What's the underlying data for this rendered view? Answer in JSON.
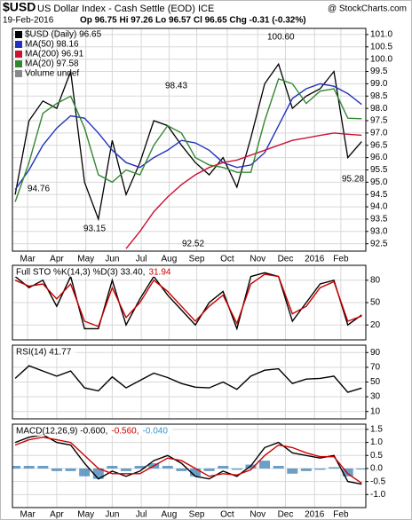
{
  "header": {
    "symbol": "$USD",
    "name": "US Dollar Index - Cash Settle (EOD) ICE",
    "source": "@ StockCharts.com",
    "date": "19-Feb-2016",
    "quote": "Op 96.75 Hi 97.26 Lo 96.57 Cl 96.65 Chg -0.31 (-0.32%)"
  },
  "chart_data": [
    {
      "type": "line",
      "x": [
        0,
        10,
        20,
        30,
        40,
        50,
        60,
        70,
        80,
        90,
        100,
        110,
        120,
        130,
        140,
        150,
        160,
        170,
        180,
        190,
        200,
        210,
        220,
        230,
        240,
        250
      ],
      "xlim": [
        -2,
        253
      ],
      "xticks": [
        {
          "value": 9,
          "label": "Mar"
        },
        {
          "value": 30,
          "label": "Apr"
        },
        {
          "value": 51,
          "label": "May"
        },
        {
          "value": 70,
          "label": "Jun"
        },
        {
          "value": 91,
          "label": "Jul"
        },
        {
          "value": 111,
          "label": "Aug"
        },
        {
          "value": 131,
          "label": "Sep"
        },
        {
          "value": 153,
          "label": "Oct"
        },
        {
          "value": 175,
          "label": "Nov"
        },
        {
          "value": 195,
          "label": "Dec"
        },
        {
          "value": 216,
          "label": "2016"
        },
        {
          "value": 235,
          "label": "Feb"
        }
      ],
      "ylim": [
        92.2,
        101.25
      ],
      "yticks": [
        92.5,
        {
          "value": 93,
          "label": "93.0"
        },
        93.5,
        {
          "value": 94,
          "label": "94.0"
        },
        94.5,
        {
          "value": 95,
          "label": "95.0"
        },
        95.5,
        {
          "value": 96,
          "label": "96.0"
        },
        96.5,
        {
          "value": 97,
          "label": "97.0"
        },
        97.5,
        {
          "value": 98,
          "label": "98.0"
        },
        98.5,
        {
          "value": 99,
          "label": "99.0"
        },
        99.5,
        {
          "value": 100,
          "label": "100.0"
        },
        100.5,
        {
          "value": 101,
          "label": "101.0"
        }
      ],
      "grid": true,
      "series": [
        {
          "name": "$USD (Daily) 96.65",
          "color": "#000000",
          "values": [
            94.5,
            97.5,
            98.3,
            98.0,
            99.5,
            95.0,
            93.5,
            96.7,
            94.5,
            95.8,
            97.5,
            97.3,
            96.5,
            95.8,
            95.3,
            96.0,
            94.8,
            96.8,
            99.0,
            99.8,
            98.0,
            98.5,
            98.8,
            99.5,
            96.0,
            96.65
          ]
        },
        {
          "name": "MA(50) 98.16",
          "color": "#2233bb",
          "values": [
            94.7,
            95.5,
            96.5,
            97.2,
            97.7,
            97.6,
            97.0,
            96.3,
            95.8,
            95.6,
            96.0,
            96.3,
            96.7,
            96.6,
            96.3,
            95.8,
            95.6,
            95.7,
            96.2,
            97.3,
            98.4,
            98.8,
            99.0,
            98.9,
            98.6,
            98.16
          ]
        },
        {
          "name": "MA(200) 96.91",
          "color": "#cc1133",
          "values": [
            null,
            null,
            null,
            null,
            null,
            null,
            null,
            null,
            92.3,
            93.0,
            93.8,
            94.4,
            94.9,
            95.3,
            95.6,
            95.8,
            95.9,
            96.1,
            96.3,
            96.5,
            96.7,
            96.8,
            96.9,
            97.0,
            96.95,
            96.91
          ]
        },
        {
          "name": "MA(20) 97.58",
          "color": "#33882f",
          "values": [
            94.2,
            95.8,
            97.8,
            98.2,
            98.5,
            97.2,
            95.3,
            95.0,
            95.5,
            95.3,
            96.5,
            97.3,
            97.0,
            96.0,
            95.7,
            95.6,
            95.4,
            95.4,
            97.5,
            99.2,
            99.0,
            98.2,
            98.7,
            98.8,
            97.6,
            97.58
          ]
        }
      ],
      "legend_note": "Volume undef",
      "annotations": [
        "100.60",
        "98.43",
        "94.76",
        "93.15",
        "92.52",
        "95.28"
      ]
    },
    {
      "type": "line",
      "x": [
        0,
        10,
        20,
        30,
        40,
        50,
        60,
        70,
        80,
        90,
        100,
        110,
        120,
        130,
        140,
        150,
        160,
        170,
        180,
        190,
        200,
        210,
        220,
        230,
        240,
        250
      ],
      "xlim": [
        -2,
        253
      ],
      "ylim": [
        0,
        100
      ],
      "yticks": [
        20,
        50,
        80
      ],
      "grid": true,
      "legend": [
        {
          "text": "Full STO %K(14,3) %D(3) 33.40,",
          "color": "#000000"
        },
        {
          "text": "31.94",
          "color": "#cc0000"
        }
      ],
      "series": [
        {
          "color": "#000000",
          "values": [
            85,
            70,
            80,
            45,
            85,
            15,
            15,
            80,
            20,
            55,
            85,
            60,
            40,
            20,
            50,
            65,
            15,
            85,
            90,
            85,
            25,
            50,
            75,
            80,
            20,
            33.4
          ]
        },
        {
          "color": "#cc0000",
          "values": [
            80,
            72,
            75,
            55,
            75,
            25,
            18,
            70,
            30,
            50,
            80,
            65,
            45,
            25,
            45,
            60,
            22,
            75,
            88,
            85,
            35,
            45,
            70,
            78,
            25,
            31.94
          ]
        }
      ]
    },
    {
      "type": "line",
      "x": [
        0,
        10,
        20,
        30,
        40,
        50,
        60,
        70,
        80,
        90,
        100,
        110,
        120,
        130,
        140,
        150,
        160,
        170,
        180,
        190,
        200,
        210,
        220,
        230,
        240,
        250
      ],
      "xlim": [
        -2,
        253
      ],
      "ylim": [
        0,
        100
      ],
      "yticks": [
        10,
        30,
        50,
        70,
        90
      ],
      "grid": true,
      "legend": [
        {
          "text": "RSI(14) 41.77",
          "color": "#000000"
        }
      ],
      "series": [
        {
          "color": "#000000",
          "values": [
            55,
            72,
            65,
            58,
            65,
            42,
            38,
            57,
            42,
            52,
            62,
            56,
            48,
            43,
            42,
            50,
            40,
            58,
            66,
            68,
            48,
            54,
            55,
            58,
            36,
            41.77
          ]
        }
      ]
    },
    {
      "type": "line",
      "x": [
        0,
        10,
        20,
        30,
        40,
        50,
        60,
        70,
        80,
        90,
        100,
        110,
        120,
        130,
        140,
        150,
        160,
        170,
        180,
        190,
        200,
        210,
        220,
        230,
        240,
        250
      ],
      "xlim": [
        -2,
        253
      ],
      "xticks": [
        {
          "value": 9,
          "label": "Mar"
        },
        {
          "value": 30,
          "label": "Apr"
        },
        {
          "value": 51,
          "label": "May"
        },
        {
          "value": 70,
          "label": "Jun"
        },
        {
          "value": 91,
          "label": "Jul"
        },
        {
          "value": 111,
          "label": "Aug"
        },
        {
          "value": 131,
          "label": "Sep"
        },
        {
          "value": 153,
          "label": "Oct"
        },
        {
          "value": 175,
          "label": "Nov"
        },
        {
          "value": 195,
          "label": "Dec"
        },
        {
          "value": 216,
          "label": "2016"
        },
        {
          "value": 235,
          "label": "Feb"
        }
      ],
      "ylim": [
        -1.5,
        1.7
      ],
      "yticks": [
        1.5,
        {
          "value": 1,
          "label": "1.0"
        },
        0.5,
        {
          "value": 0,
          "label": "0.0"
        },
        -0.5,
        {
          "value": -1,
          "label": "-1.0"
        }
      ],
      "grid": true,
      "legend": [
        {
          "text": "MACD(12,26,9) -0.600,",
          "color": "#000000"
        },
        {
          "text": "-0.560,",
          "color": "#cc0000"
        },
        {
          "text": "-0.040",
          "color": "#3399cc"
        }
      ],
      "series": [
        {
          "style": "bar",
          "color": "#3a7fb5",
          "values": [
            0.1,
            0.1,
            0.1,
            -0.1,
            -0.1,
            -0.3,
            -0.4,
            0.1,
            -0.1,
            0.1,
            0.2,
            0.1,
            -0.1,
            -0.3,
            -0.1,
            0.1,
            -0.05,
            0.15,
            0.3,
            0.1,
            -0.2,
            -0.1,
            -0.05,
            0.05,
            -0.3,
            -0.04
          ]
        },
        {
          "color": "#000000",
          "values": [
            1.0,
            1.2,
            1.3,
            1.0,
            0.9,
            0.2,
            -0.4,
            -0.1,
            -0.3,
            -0.1,
            0.3,
            0.5,
            0.2,
            -0.3,
            -0.4,
            -0.1,
            -0.3,
            0.1,
            0.8,
            1.0,
            0.6,
            0.5,
            0.4,
            0.5,
            -0.5,
            -0.6
          ]
        },
        {
          "color": "#cc0000",
          "values": [
            0.9,
            1.1,
            1.2,
            1.1,
            1.0,
            0.5,
            0.0,
            -0.2,
            -0.2,
            -0.2,
            0.1,
            0.4,
            0.3,
            0.0,
            -0.3,
            -0.2,
            -0.25,
            -0.05,
            0.5,
            0.9,
            0.8,
            0.6,
            0.45,
            0.45,
            -0.2,
            -0.56
          ]
        }
      ]
    }
  ]
}
